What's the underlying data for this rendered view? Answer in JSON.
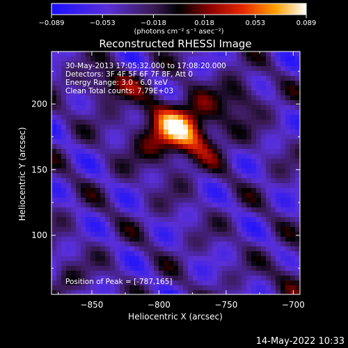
{
  "colorbar": {
    "ticks": [
      "-0.089",
      "-0.053",
      "-0.018",
      "0.018",
      "0.053",
      "0.089"
    ],
    "vmin": -0.089,
    "vmax": 0.089,
    "units_line": "(photons cm⁻² s⁻¹ asec⁻²)",
    "colormap": "blue-purple-black-red-orange-yellow-white"
  },
  "chart_data": {
    "type": "heatmap",
    "title": "Reconstructed RHESSI Image",
    "xlabel": "Heliocentric X (arcsec)",
    "ylabel": "Heliocentric Y (arcsec)",
    "xlim": [
      -880,
      -695
    ],
    "ylim": [
      55,
      240
    ],
    "x_ticks": [
      -850,
      -800,
      -750,
      -700
    ],
    "x_tick_labels": [
      "−850",
      "−800",
      "−750",
      "−700"
    ],
    "y_ticks": [
      100,
      150,
      200
    ],
    "y_tick_labels": [
      "100",
      "150",
      "200"
    ],
    "peak_position": [
      -787,
      165
    ],
    "source": {
      "x": -785,
      "y": 180,
      "peak_value": 0.089
    },
    "grid": false,
    "annotations": [
      "30-May-2013 17:05:32.000 to 17:08:20.000",
      "Detectors: 3F 4F 5F 6F 7F 8F, Att 0",
      "Energy Range: 3.0 - 6.0 keV",
      "Clean     Total counts: 7.79E+03"
    ],
    "peak_label": "Position of Peak = [-787,165]"
  },
  "footer": {
    "timestamp": "14-May-2022 10:33"
  }
}
